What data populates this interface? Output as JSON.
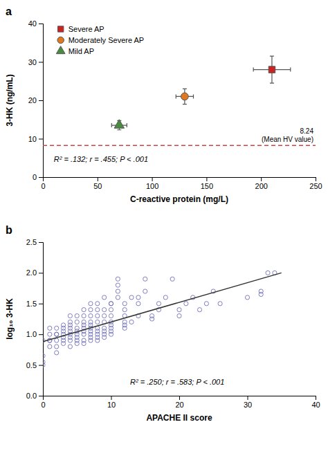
{
  "chart_data": [
    {
      "type": "scatter",
      "title": "a",
      "xlabel": "C-reactive protein (mg/L)",
      "ylabel": "3-HK (ng/mL)",
      "xlim": [
        0,
        250
      ],
      "ylim": [
        0,
        40
      ],
      "xticks": [
        0,
        50,
        100,
        150,
        200,
        250
      ],
      "yticks": [
        0,
        10,
        20,
        30,
        40
      ],
      "legend": "upper left",
      "annotation": "R² = .132; r = .455; P < .001",
      "hline": {
        "value": 8.24,
        "color": "#cc4444",
        "text": [
          "8.24",
          "(Mean HV value)"
        ]
      },
      "series": [
        {
          "name": "Severe AP",
          "color": "#cc2222",
          "marker": "square",
          "x": [
            210
          ],
          "values": [
            28
          ],
          "xerr": [
            17
          ],
          "yerr": [
            3.5
          ]
        },
        {
          "name": "Moderately Severe AP",
          "color": "#e07820",
          "marker": "circle",
          "x": [
            130
          ],
          "values": [
            21
          ],
          "xerr": [
            8
          ],
          "yerr": [
            2.0
          ]
        },
        {
          "name": "Mild AP",
          "color": "#4a8c3f",
          "marker": "triangle",
          "x": [
            70
          ],
          "values": [
            13.5
          ],
          "xerr": [
            7
          ],
          "yerr": [
            1.2
          ]
        }
      ]
    },
    {
      "type": "scatter",
      "title": "b",
      "xlabel": "APACHE II score",
      "ylabel": "log₁₀ 3-HK",
      "xlim": [
        0,
        40
      ],
      "ylim": [
        0.0,
        2.5
      ],
      "xticks": [
        0,
        10,
        20,
        30,
        40
      ],
      "yticks": [
        {
          "value": 0.0,
          "label": "0.0"
        },
        0.5,
        {
          "value": 1.0,
          "label": "1.0"
        },
        1.5,
        {
          "value": 2.0,
          "label": "2.0"
        },
        2.5
      ],
      "annotation": "R² = .250; r = .583; P < .001",
      "series": [
        {
          "color": "#7070bb",
          "marker": "open-circle",
          "x": [
            0,
            0,
            0,
            0,
            1,
            1,
            1,
            1,
            1,
            2,
            2,
            2,
            2,
            2,
            2,
            3,
            3,
            3,
            3,
            3,
            3,
            3,
            4,
            4,
            4,
            4,
            4,
            4,
            4,
            4,
            4,
            5,
            5,
            5,
            5,
            5,
            5,
            5,
            5,
            6,
            6,
            6,
            6,
            6,
            6,
            6,
            6,
            6,
            7,
            7,
            7,
            7,
            7,
            7,
            7,
            7,
            7,
            7,
            8,
            8,
            8,
            8,
            8,
            8,
            8,
            8,
            8,
            9,
            9,
            9,
            9,
            9,
            9,
            9,
            9,
            10,
            10,
            10,
            10,
            10,
            10,
            10,
            10,
            10,
            11,
            11,
            11,
            11,
            12,
            12,
            12,
            12,
            12,
            12,
            13,
            13,
            14,
            14,
            14,
            15,
            15,
            16,
            16,
            17,
            17,
            18,
            19,
            20,
            20,
            21,
            22,
            23,
            24,
            25,
            26,
            30,
            32,
            32,
            33,
            34
          ],
          "values": [
            0.5,
            0.55,
            0.65,
            0.9,
            0.8,
            0.9,
            0.9,
            1.0,
            1.1,
            0.7,
            0.8,
            0.9,
            1.0,
            1.0,
            1.1,
            0.85,
            0.9,
            0.95,
            1.0,
            1.05,
            1.1,
            1.15,
            0.8,
            0.9,
            0.95,
            1.0,
            1.05,
            1.1,
            1.15,
            1.2,
            1.3,
            0.85,
            0.9,
            0.95,
            1.0,
            1.05,
            1.1,
            1.2,
            1.3,
            0.85,
            0.9,
            1.0,
            1.05,
            1.1,
            1.15,
            1.2,
            1.3,
            1.4,
            0.9,
            0.95,
            1.0,
            1.05,
            1.1,
            1.15,
            1.2,
            1.3,
            1.4,
            1.5,
            0.9,
            0.95,
            1.0,
            1.05,
            1.1,
            1.2,
            1.3,
            1.4,
            1.5,
            1.6,
            0.95,
            1.0,
            1.05,
            1.1,
            1.2,
            1.3,
            1.4,
            1.5,
            1.0,
            1.05,
            1.1,
            1.15,
            1.2,
            1.3,
            1.4,
            1.5,
            1.6,
            1.7,
            1.8,
            1.9,
            1.1,
            1.15,
            1.2,
            1.3,
            1.4,
            1.5,
            1.6,
            1.2,
            1.3,
            1.5,
            1.6,
            1.7,
            1.9,
            1.25,
            1.3,
            1.4,
            1.5,
            1.6,
            1.9,
            1.3,
            1.4,
            1.5,
            1.6,
            1.4,
            1.5,
            1.7,
            1.5,
            1.6,
            1.7,
            1.65,
            2.0,
            2.0
          ]
        },
        {
          "type": "line",
          "color": "#333333",
          "x": [
            0.0,
            35.0
          ],
          "values": [
            0.88,
            2.0
          ]
        }
      ]
    }
  ]
}
